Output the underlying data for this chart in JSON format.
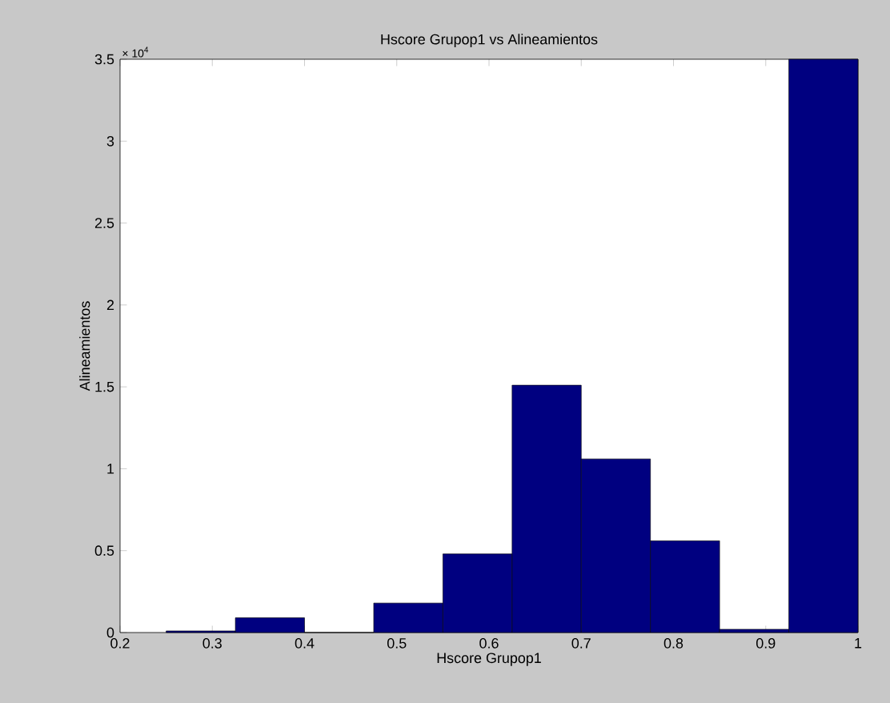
{
  "chart_data": {
    "type": "histogram",
    "title": "Hscore Grupop1 vs Alineamientos",
    "xlabel": "Hscore Grupop1",
    "ylabel": "Alineamientos",
    "bins": [
      0.25,
      0.325,
      0.4,
      0.475,
      0.55,
      0.625,
      0.7,
      0.775,
      0.85,
      0.925,
      1.0
    ],
    "values": [
      0.01,
      0.09,
      0,
      0.18,
      0.48,
      1.51,
      1.06,
      0.56,
      0.02,
      3.5
    ],
    "color": "#000080",
    "xlim": [
      0.2,
      1
    ],
    "xticks": [
      0.2,
      0.3,
      0.4,
      0.5,
      0.6,
      0.7,
      0.8,
      0.9,
      1
    ],
    "ylim": [
      0,
      3.5
    ],
    "yticks": [
      0,
      0.5,
      1,
      1.5,
      2,
      2.5,
      3,
      3.5
    ],
    "annotations": [
      "× 10$^{4}$"
    ]
  }
}
